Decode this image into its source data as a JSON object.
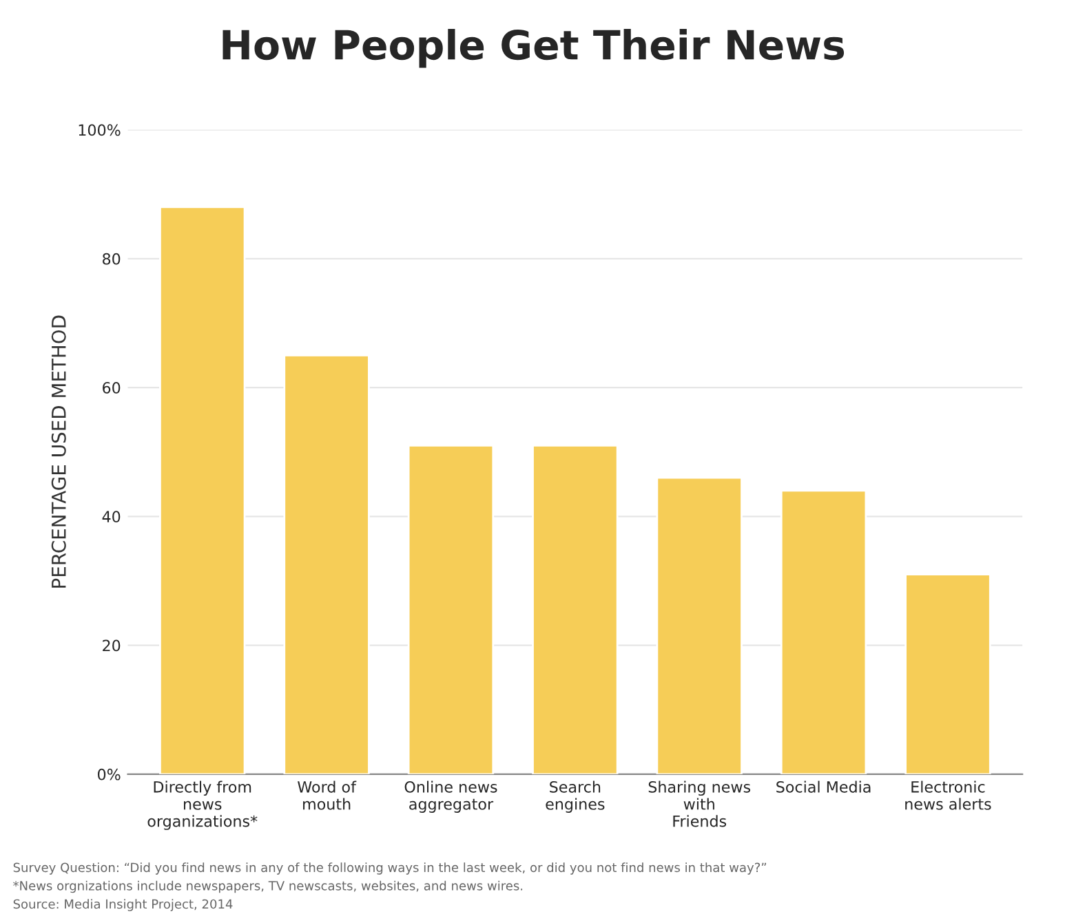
{
  "chart_data": {
    "type": "bar",
    "title": "How People Get Their News",
    "ylabel": "PERCENTAGE USED METHOD",
    "categories": [
      "Directly from\nnews\norganizations*",
      "Word of\nmouth",
      "Online news\naggregator",
      "Search\nengines",
      "Sharing news\nwith\nFriends",
      "Social Media",
      "Electronic\nnews alerts"
    ],
    "values": [
      88,
      65,
      51,
      51,
      46,
      44,
      31
    ],
    "color": "#f6cd57",
    "ylim": [
      0,
      100
    ],
    "yticks": [
      {
        "value": 0,
        "label": "0%"
      },
      20,
      40,
      60,
      80,
      {
        "value": 100,
        "label": "100%"
      }
    ],
    "grid": "y",
    "annotations": [
      "Survey Question: “Did you find news in any of the following ways in the last week, or did you not find news in that way?”",
      "*News orgnizations include newspapers, TV newscasts, websites, and news wires.",
      "Source: Media Insight Project, 2014"
    ]
  }
}
